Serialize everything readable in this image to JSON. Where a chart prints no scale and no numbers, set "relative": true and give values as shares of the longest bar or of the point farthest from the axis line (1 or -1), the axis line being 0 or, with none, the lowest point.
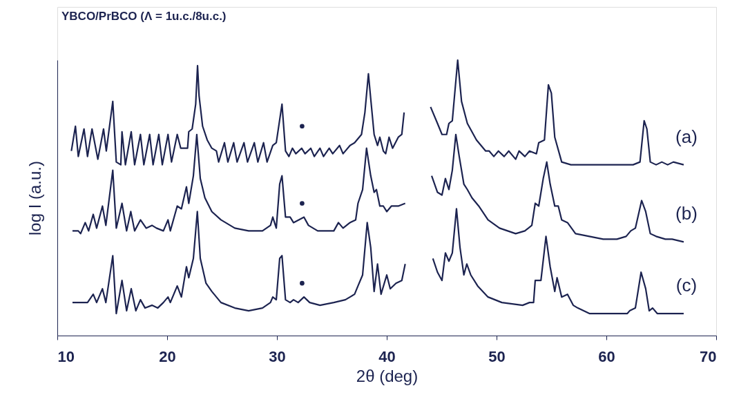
{
  "chart_data": {
    "type": "line",
    "title": "YBCO/PrBCO (Λ = 1u.c./8u.c.)",
    "xlabel": "2θ (deg)",
    "ylabel": "log I (a.u.)",
    "relative": true,
    "xlim": [
      10,
      70
    ],
    "xticks": [
      10,
      20,
      30,
      40,
      50,
      60,
      70
    ],
    "series": [
      {
        "name": "(a)",
        "color": "#1c2350",
        "x": [
          11.28,
          11.65,
          11.91,
          12.43,
          12.75,
          13.16,
          13.69,
          14.21,
          14.46,
          15.05,
          15.37,
          15.78,
          15.89,
          16.2,
          16.73,
          17.04,
          17.57,
          17.88,
          18.41,
          18.72,
          19.24,
          19.56,
          20.08,
          20.4,
          20.92,
          21.24,
          21.86,
          21.97,
          22.28,
          22.6,
          22.77,
          22.91,
          23.23,
          23.65,
          24.07,
          24.49,
          24.69,
          25.22,
          25.53,
          26.06,
          26.37,
          27.0,
          27.32,
          27.94,
          28.26,
          28.78,
          29.1,
          29.62,
          29.94,
          30.46,
          30.78,
          31.09,
          31.41,
          31.72,
          32.25,
          32.56,
          33.08,
          33.4,
          33.92,
          34.24,
          34.76,
          35.08,
          35.7,
          36.02,
          36.65,
          37.07,
          37.7,
          38.01,
          38.33,
          38.54,
          38.85,
          39.16,
          39.37,
          39.69,
          39.9,
          40.21,
          40.53,
          41.05,
          41.37,
          41.58,
          42.8,
          43.99,
          44.62,
          45.03,
          45.45,
          45.66,
          45.97,
          46.46,
          46.81,
          47.34,
          48.17,
          49.01,
          49.33,
          49.75,
          50.17,
          50.69,
          51.11,
          51.74,
          52.05,
          52.58,
          53.0,
          53.63,
          53.84,
          54.36,
          54.72,
          54.99,
          55.3,
          55.93,
          56.77,
          57.61,
          58.45,
          59.5,
          60.54,
          61.59,
          62.43,
          63.06,
          63.44,
          63.69,
          64.0,
          64.53,
          65.05,
          65.58,
          66.1,
          67.04
        ],
        "values": [
          0.67,
          0.76,
          0.65,
          0.75,
          0.65,
          0.75,
          0.64,
          0.75,
          0.67,
          0.85,
          0.63,
          0.62,
          0.74,
          0.62,
          0.74,
          0.62,
          0.73,
          0.62,
          0.73,
          0.62,
          0.73,
          0.62,
          0.73,
          0.63,
          0.73,
          0.68,
          0.68,
          0.74,
          0.75,
          0.84,
          0.98,
          0.87,
          0.76,
          0.71,
          0.68,
          0.67,
          0.63,
          0.7,
          0.63,
          0.7,
          0.63,
          0.7,
          0.63,
          0.7,
          0.63,
          0.7,
          0.63,
          0.69,
          0.7,
          0.84,
          0.67,
          0.65,
          0.68,
          0.66,
          0.68,
          0.66,
          0.68,
          0.65,
          0.68,
          0.65,
          0.68,
          0.66,
          0.69,
          0.66,
          0.69,
          0.7,
          0.73,
          0.81,
          0.95,
          0.86,
          0.73,
          0.69,
          0.72,
          0.67,
          0.66,
          0.72,
          0.68,
          0.72,
          0.73,
          0.81,
          null,
          0.83,
          0.77,
          0.73,
          0.73,
          0.77,
          0.78,
          1.0,
          0.85,
          0.77,
          0.71,
          0.67,
          0.67,
          0.65,
          0.67,
          0.65,
          0.67,
          0.64,
          0.67,
          0.65,
          0.67,
          0.66,
          0.7,
          0.71,
          0.91,
          0.88,
          0.72,
          0.63,
          0.62,
          0.62,
          0.62,
          0.62,
          0.62,
          0.62,
          0.62,
          0.63,
          0.78,
          0.75,
          0.63,
          0.62,
          0.63,
          0.62,
          0.63,
          0.62
        ]
      },
      {
        "name": "(b)",
        "color": "#1c2350",
        "x": [
          11.38,
          11.91,
          12.12,
          12.54,
          12.85,
          13.27,
          13.58,
          14.11,
          14.42,
          15.05,
          15.37,
          15.89,
          16.31,
          16.69,
          17.04,
          17.57,
          18.09,
          18.62,
          19.03,
          19.66,
          20.08,
          20.29,
          20.92,
          21.3,
          21.76,
          21.97,
          22.39,
          22.7,
          23.02,
          23.44,
          24.07,
          24.9,
          26.16,
          27.42,
          28.68,
          29.41,
          29.62,
          29.94,
          30.25,
          30.46,
          30.78,
          31.2,
          31.51,
          32.46,
          32.87,
          33.71,
          34.34,
          35.18,
          35.6,
          36.02,
          36.65,
          37.17,
          37.38,
          37.8,
          38.16,
          38.54,
          38.85,
          39.06,
          39.37,
          39.69,
          40.0,
          40.42,
          41.05,
          41.68,
          42.8,
          44.09,
          44.62,
          45.03,
          45.34,
          45.66,
          45.97,
          46.29,
          46.6,
          47.02,
          47.34,
          47.76,
          48.38,
          49.22,
          50.27,
          51.74,
          52.58,
          53.21,
          53.52,
          53.84,
          54.25,
          54.57,
          54.88,
          55.3,
          55.62,
          55.93,
          56.46,
          57.19,
          58.45,
          59.71,
          60.96,
          61.8,
          62.22,
          62.64,
          63.21,
          63.58,
          64.0,
          64.53,
          65.37,
          65.99,
          67.04
        ],
        "values": [
          0.38,
          0.38,
          0.37,
          0.41,
          0.38,
          0.44,
          0.39,
          0.47,
          0.4,
          0.6,
          0.39,
          0.48,
          0.38,
          0.45,
          0.38,
          0.42,
          0.39,
          0.4,
          0.39,
          0.38,
          0.42,
          0.38,
          0.47,
          0.46,
          0.54,
          0.48,
          0.58,
          0.73,
          0.57,
          0.5,
          0.45,
          0.42,
          0.39,
          0.38,
          0.38,
          0.4,
          0.43,
          0.39,
          0.55,
          0.58,
          0.43,
          0.43,
          0.41,
          0.43,
          0.4,
          0.38,
          0.38,
          0.38,
          0.41,
          0.39,
          0.41,
          0.42,
          0.48,
          0.53,
          0.68,
          0.58,
          0.52,
          0.53,
          0.47,
          0.47,
          0.45,
          0.47,
          0.47,
          0.48,
          null,
          0.58,
          0.52,
          0.51,
          0.57,
          0.53,
          0.6,
          0.73,
          0.65,
          0.55,
          0.53,
          0.5,
          0.47,
          0.42,
          0.39,
          0.37,
          0.38,
          0.4,
          0.48,
          0.47,
          0.57,
          0.63,
          0.55,
          0.47,
          0.47,
          0.42,
          0.41,
          0.37,
          0.36,
          0.35,
          0.35,
          0.36,
          0.38,
          0.39,
          0.49,
          0.45,
          0.37,
          0.36,
          0.35,
          0.35,
          0.34
        ]
      },
      {
        "name": "(c)",
        "color": "#1c2350",
        "x": [
          11.38,
          11.91,
          12.43,
          12.75,
          13.27,
          13.58,
          14.11,
          14.42,
          15.05,
          15.37,
          15.89,
          16.31,
          16.73,
          17.15,
          17.57,
          17.99,
          18.62,
          19.14,
          19.66,
          20.08,
          20.29,
          20.92,
          21.3,
          21.76,
          21.97,
          22.39,
          22.75,
          23.02,
          23.54,
          24.07,
          24.9,
          26.16,
          27.42,
          28.68,
          29.41,
          29.62,
          29.94,
          30.25,
          30.46,
          30.78,
          31.2,
          31.51,
          31.93,
          32.46,
          32.98,
          33.92,
          35.18,
          36.23,
          37.07,
          37.38,
          37.8,
          38.22,
          38.54,
          38.85,
          39.16,
          39.48,
          40.0,
          40.32,
          40.84,
          41.37,
          41.68,
          42.8,
          44.2,
          44.62,
          45.03,
          45.34,
          45.66,
          45.97,
          46.35,
          46.67,
          47.02,
          47.29,
          47.65,
          48.28,
          49.22,
          50.48,
          52.37,
          53.0,
          53.37,
          53.52,
          54.04,
          54.5,
          54.88,
          55.3,
          55.51,
          55.93,
          56.46,
          56.98,
          57.4,
          58.45,
          60.12,
          61.91,
          62.12,
          62.64,
          63.16,
          63.58,
          63.9,
          64.21,
          64.63,
          65.37,
          67.04
        ],
        "values": [
          0.12,
          0.12,
          0.12,
          0.12,
          0.15,
          0.12,
          0.17,
          0.12,
          0.29,
          0.08,
          0.2,
          0.09,
          0.17,
          0.09,
          0.13,
          0.1,
          0.11,
          0.1,
          0.12,
          0.14,
          0.12,
          0.18,
          0.14,
          0.25,
          0.21,
          0.28,
          0.45,
          0.28,
          0.19,
          0.16,
          0.12,
          0.1,
          0.09,
          0.1,
          0.12,
          0.14,
          0.13,
          0.28,
          0.29,
          0.13,
          0.12,
          0.13,
          0.12,
          0.14,
          0.12,
          0.11,
          0.12,
          0.13,
          0.15,
          0.18,
          0.22,
          0.41,
          0.32,
          0.16,
          0.26,
          0.15,
          0.22,
          0.17,
          0.19,
          0.2,
          0.26,
          null,
          0.28,
          0.23,
          0.2,
          0.3,
          0.27,
          0.3,
          0.46,
          0.32,
          0.22,
          0.26,
          0.22,
          0.18,
          0.14,
          0.12,
          0.11,
          0.12,
          0.12,
          0.2,
          0.2,
          0.36,
          0.25,
          0.16,
          0.21,
          0.14,
          0.15,
          0.11,
          0.1,
          0.08,
          0.08,
          0.08,
          0.09,
          0.1,
          0.23,
          0.17,
          0.09,
          0.1,
          0.08,
          0.08,
          0.08
        ]
      },
      {
        "type": "scatter",
        "marker": "circle",
        "color": "#1c2350",
        "x": [
          32.29,
          32.29,
          32.29
        ],
        "values": [
          0.76,
          0.48,
          0.19
        ]
      }
    ]
  }
}
